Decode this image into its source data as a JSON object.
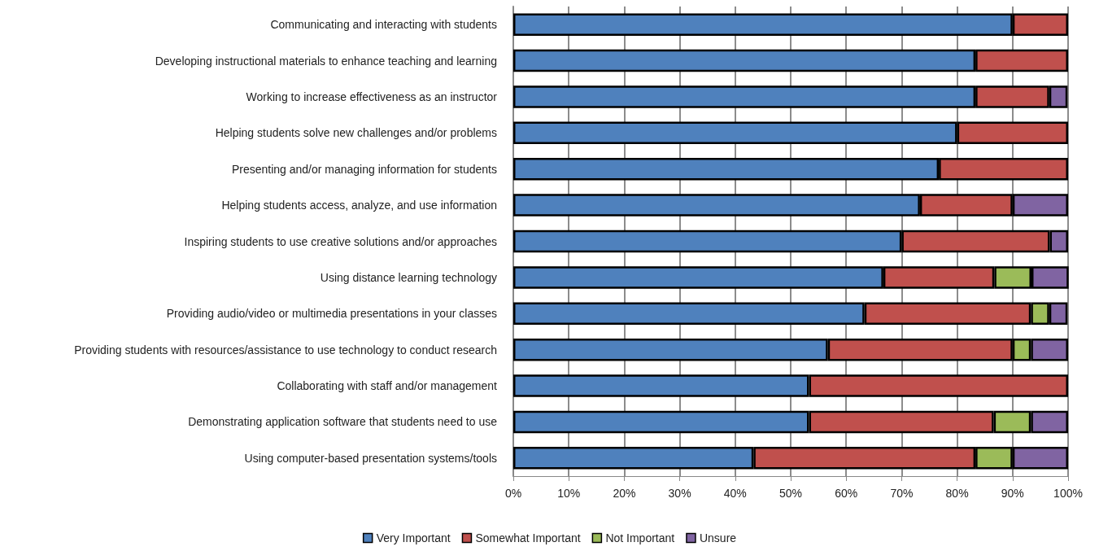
{
  "chart_data": {
    "type": "bar",
    "orientation": "horizontal",
    "stacked": true,
    "categories": [
      "Communicating and interacting with students",
      "Developing instructional materials to enhance teaching and learning",
      "Working to increase effectiveness as an instructor",
      "Helping students solve new challenges and/or problems",
      "Presenting and/or managing information for students",
      "Helping students access, analyze, and use information",
      "Inspiring students to use creative solutions and/or approaches",
      "Using distance learning technology",
      "Providing audio/video or multimedia presentations in your classes",
      "Providing students with resources/assistance to use technology to conduct research",
      "Collaborating with staff and/or management",
      "Demonstrating application software that students need to use",
      "Using computer-based presentation systems/tools"
    ],
    "series": [
      {
        "name": "Very Important",
        "color": "#4f81bd",
        "values": [
          90,
          83.3,
          83.3,
          80,
          76.7,
          73.3,
          70,
          66.7,
          63.3,
          56.7,
          53.3,
          53.3,
          43.3
        ]
      },
      {
        "name": "Somewhat Important",
        "color": "#c0504d",
        "values": [
          10,
          16.7,
          13.3,
          20,
          23.3,
          16.7,
          26.7,
          20,
          30,
          33.3,
          46.7,
          33.3,
          40
        ]
      },
      {
        "name": "Not Important",
        "color": "#9bbb59",
        "values": [
          null,
          null,
          null,
          null,
          null,
          null,
          null,
          6.7,
          3.3,
          3.3,
          null,
          6.7,
          6.7
        ]
      },
      {
        "name": "Unsure",
        "color": "#8064a2",
        "values": [
          null,
          null,
          3.3,
          null,
          null,
          10,
          3.3,
          6.7,
          3.3,
          6.7,
          null,
          6.7,
          10
        ]
      }
    ],
    "xlim": [
      0,
      100
    ],
    "xticks": [
      {
        "value": 0,
        "label": "0%"
      },
      {
        "value": 10,
        "label": "10%"
      },
      {
        "value": 20,
        "label": "20%"
      },
      {
        "value": 30,
        "label": "30%"
      },
      {
        "value": 40,
        "label": "40%"
      },
      {
        "value": 50,
        "label": "50%"
      },
      {
        "value": 60,
        "label": "60%"
      },
      {
        "value": 70,
        "label": "70%"
      },
      {
        "value": 80,
        "label": "80%"
      },
      {
        "value": 90,
        "label": "90%"
      },
      {
        "value": 100,
        "label": "100%"
      }
    ],
    "grid": "x",
    "legend": "bottom"
  }
}
